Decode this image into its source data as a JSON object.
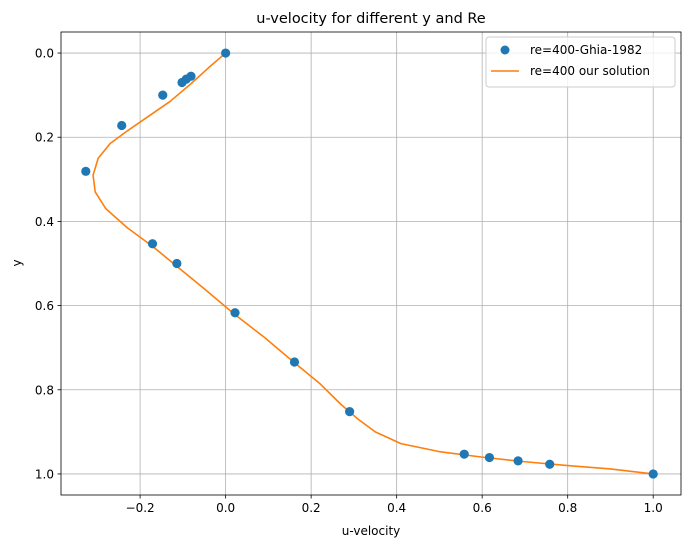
{
  "chart_data": {
    "type": "line",
    "title": "u-velocity for different y and Re",
    "xlabel": "u-velocity",
    "ylabel": "y",
    "xlim": [
      -0.385,
      1.065
    ],
    "ylim": [
      1.05,
      -0.05
    ],
    "y_inverted": true,
    "grid": true,
    "legend_position": "top-right",
    "xticks": [
      -0.2,
      0.0,
      0.2,
      0.4,
      0.6,
      0.8,
      1.0
    ],
    "xtick_labels": [
      "−0.2",
      "0.0",
      "0.2",
      "0.4",
      "0.6",
      "0.8",
      "1.0"
    ],
    "yticks": [
      0.0,
      0.2,
      0.4,
      0.6,
      0.8,
      1.0
    ],
    "ytick_labels": [
      "0.0",
      "0.2",
      "0.4",
      "0.6",
      "0.8",
      "1.0"
    ],
    "series": [
      {
        "name": "re=400-Ghia-1982",
        "kind": "scatter",
        "color": "#1f77b4",
        "points": [
          {
            "x": 0.0,
            "y": 0.0
          },
          {
            "x": -0.081,
            "y": 0.055
          },
          {
            "x": -0.092,
            "y": 0.062
          },
          {
            "x": -0.102,
            "y": 0.07
          },
          {
            "x": -0.147,
            "y": 0.1
          },
          {
            "x": -0.243,
            "y": 0.172
          },
          {
            "x": -0.327,
            "y": 0.281
          },
          {
            "x": -0.171,
            "y": 0.453
          },
          {
            "x": -0.114,
            "y": 0.5
          },
          {
            "x": 0.022,
            "y": 0.617
          },
          {
            "x": 0.161,
            "y": 0.734
          },
          {
            "x": 0.29,
            "y": 0.852
          },
          {
            "x": 0.558,
            "y": 0.953
          },
          {
            "x": 0.617,
            "y": 0.961
          },
          {
            "x": 0.684,
            "y": 0.969
          },
          {
            "x": 0.758,
            "y": 0.977
          },
          {
            "x": 1.0,
            "y": 1.0
          }
        ]
      },
      {
        "name": "re=400 our solution",
        "kind": "line",
        "color": "#ff7f0e",
        "points": [
          {
            "x": 0.0,
            "y": 0.0
          },
          {
            "x": -0.04,
            "y": 0.035
          },
          {
            "x": -0.08,
            "y": 0.072
          },
          {
            "x": -0.13,
            "y": 0.115
          },
          {
            "x": -0.18,
            "y": 0.15
          },
          {
            "x": -0.23,
            "y": 0.185
          },
          {
            "x": -0.27,
            "y": 0.215
          },
          {
            "x": -0.298,
            "y": 0.25
          },
          {
            "x": -0.31,
            "y": 0.29
          },
          {
            "x": -0.305,
            "y": 0.33
          },
          {
            "x": -0.28,
            "y": 0.37
          },
          {
            "x": -0.23,
            "y": 0.415
          },
          {
            "x": -0.17,
            "y": 0.46
          },
          {
            "x": -0.11,
            "y": 0.51
          },
          {
            "x": -0.05,
            "y": 0.56
          },
          {
            "x": 0.02,
            "y": 0.62
          },
          {
            "x": 0.09,
            "y": 0.675
          },
          {
            "x": 0.16,
            "y": 0.735
          },
          {
            "x": 0.22,
            "y": 0.785
          },
          {
            "x": 0.27,
            "y": 0.835
          },
          {
            "x": 0.31,
            "y": 0.87
          },
          {
            "x": 0.35,
            "y": 0.9
          },
          {
            "x": 0.41,
            "y": 0.928
          },
          {
            "x": 0.5,
            "y": 0.947
          },
          {
            "x": 0.6,
            "y": 0.96
          },
          {
            "x": 0.7,
            "y": 0.971
          },
          {
            "x": 0.8,
            "y": 0.98
          },
          {
            "x": 0.9,
            "y": 0.988
          },
          {
            "x": 1.0,
            "y": 1.0
          }
        ]
      }
    ]
  }
}
